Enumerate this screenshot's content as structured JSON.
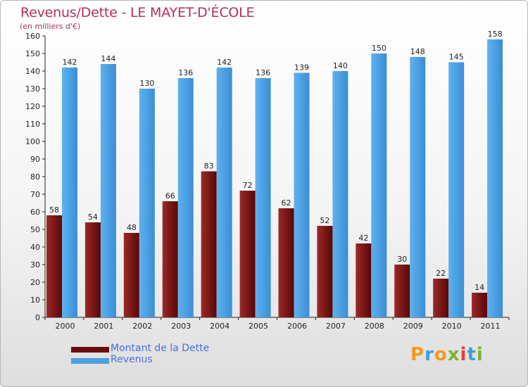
{
  "header": {
    "title": "Revenus/Dette - LE MAYET-D'ÉCOLE",
    "subtitle": "(en milliers d'€)"
  },
  "chart_data": {
    "type": "bar",
    "categories": [
      "2000",
      "2001",
      "2002",
      "2003",
      "2004",
      "2005",
      "2006",
      "2007",
      "2008",
      "2009",
      "2010",
      "2011"
    ],
    "series": [
      {
        "name": "Montant de la Dette",
        "values": [
          58,
          54,
          48,
          66,
          83,
          72,
          62,
          52,
          42,
          30,
          22,
          14
        ],
        "color": "#7a1010"
      },
      {
        "name": "Revenus",
        "values": [
          142,
          144,
          130,
          136,
          142,
          136,
          139,
          140,
          150,
          148,
          145,
          158
        ],
        "color": "#4aa0e2"
      }
    ],
    "ylim": [
      0,
      160
    ],
    "ytick_step": 10,
    "grid": false,
    "legend_position": "bottom-left"
  },
  "logo": {
    "text": "Proxiti",
    "colors": [
      "#f39a1e",
      "#3aa0dc",
      "#7ab32e",
      "#e53d35"
    ]
  }
}
